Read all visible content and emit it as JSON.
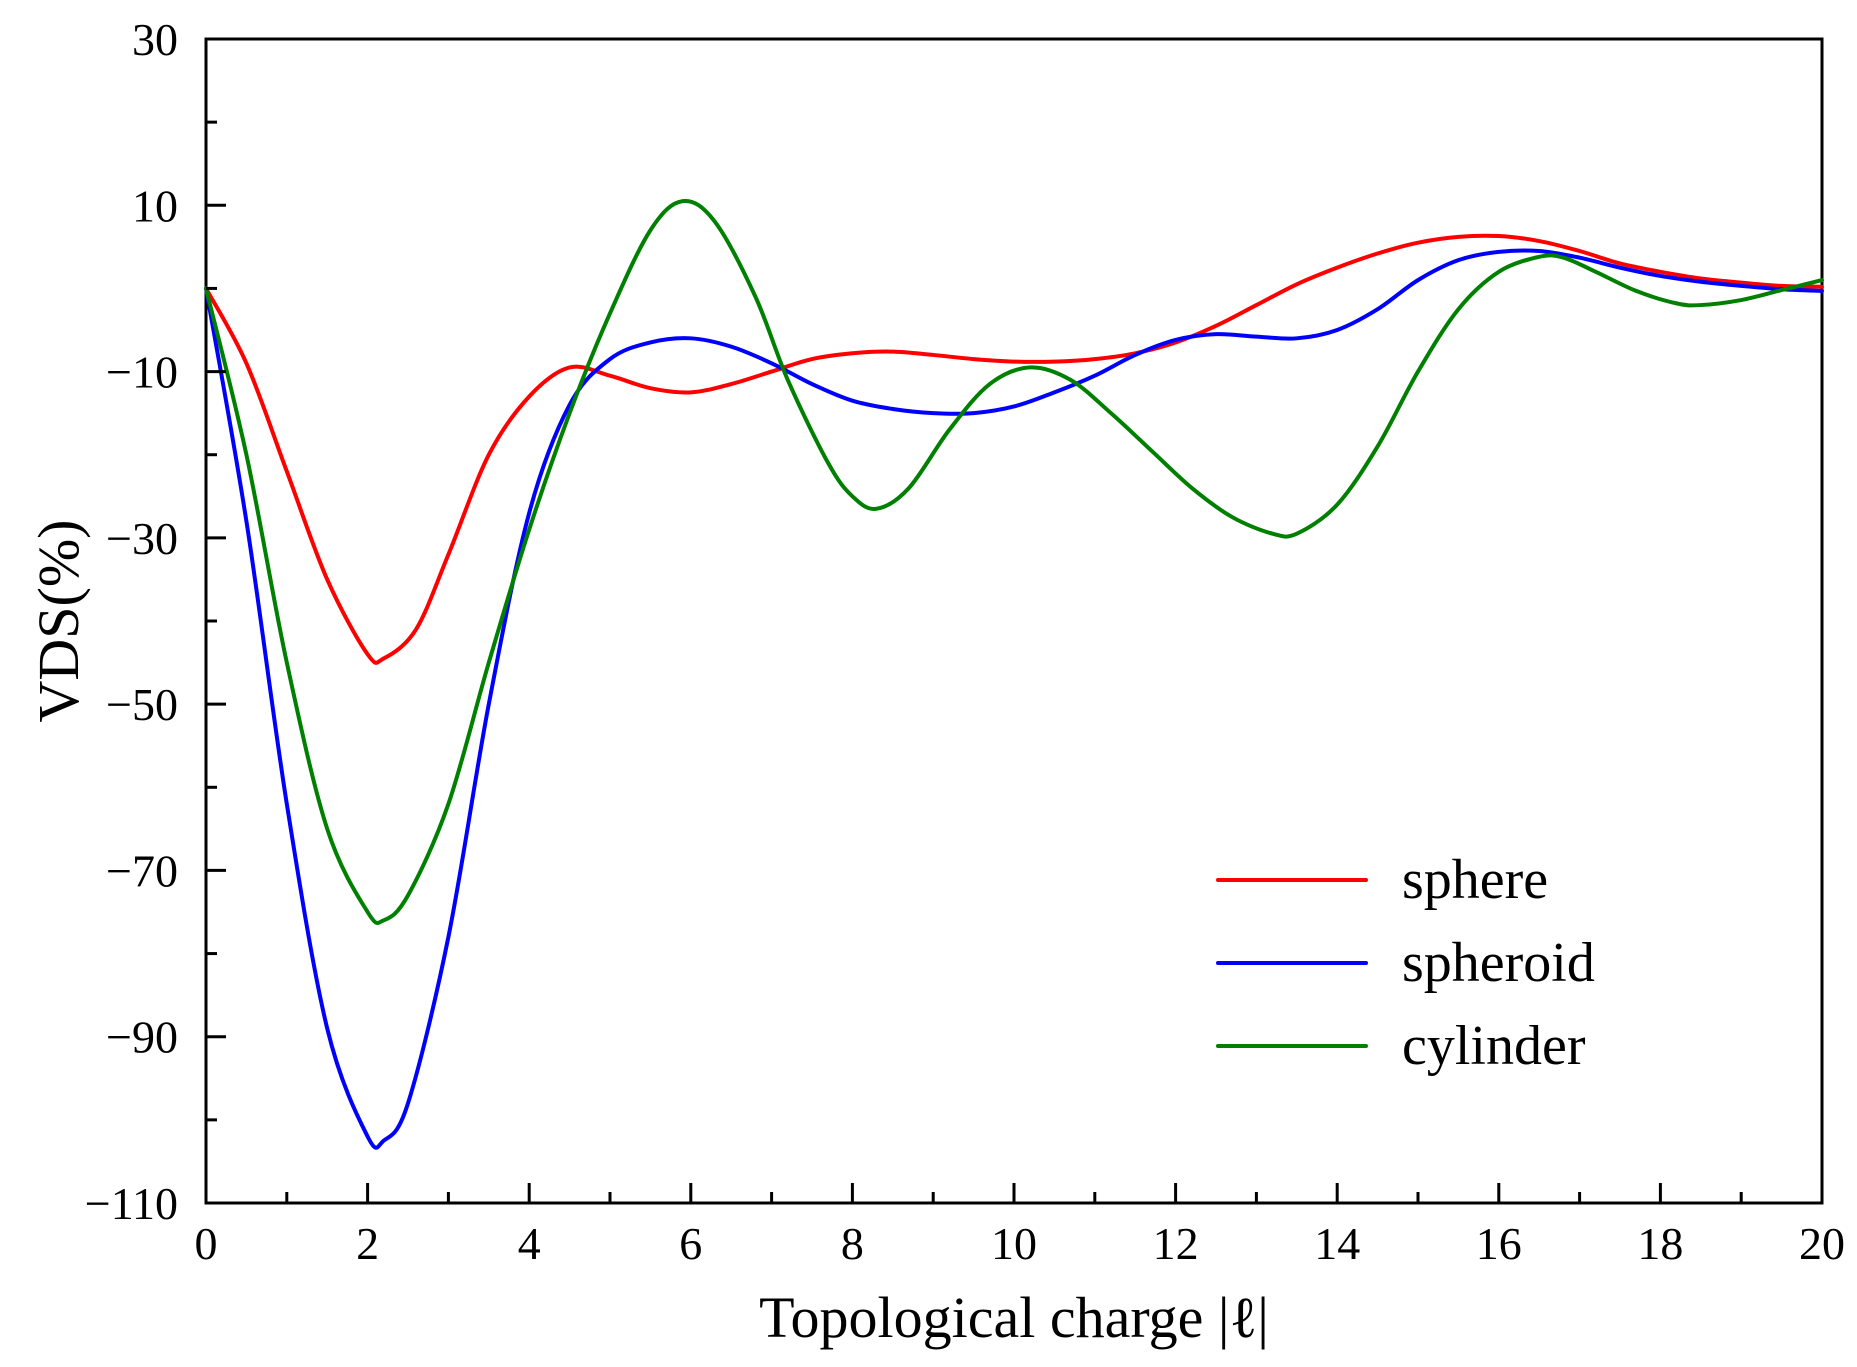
{
  "chart_data": {
    "type": "line",
    "title": "",
    "xlabel": "Topological charge |ℓ|",
    "ylabel": "VDS(%)",
    "xlim": [
      0,
      20
    ],
    "ylim": [
      -110,
      30
    ],
    "xticks": [
      0,
      2,
      4,
      6,
      8,
      10,
      12,
      14,
      16,
      18,
      20
    ],
    "xtick_labels": [
      "0",
      "2",
      "4",
      "6",
      "8",
      "10",
      "12",
      "14",
      "16",
      "18",
      "20"
    ],
    "yticks": [
      30,
      10,
      -10,
      -30,
      -50,
      -70,
      -90,
      -110
    ],
    "ytick_labels": [
      "30",
      "10",
      "−10",
      "−30",
      "−50",
      "−70",
      "−90",
      "−110"
    ],
    "grid": false,
    "legend_position": "lower-right",
    "series": [
      {
        "name": "sphere",
        "color": "#ff0000",
        "points": [
          [
            0,
            0
          ],
          [
            0.5,
            -9
          ],
          [
            1,
            -22
          ],
          [
            1.5,
            -35
          ],
          [
            2,
            -44
          ],
          [
            2.2,
            -44.5
          ],
          [
            2.6,
            -41
          ],
          [
            3,
            -32
          ],
          [
            3.5,
            -20
          ],
          [
            4,
            -13
          ],
          [
            4.5,
            -9.5
          ],
          [
            5,
            -10.5
          ],
          [
            5.5,
            -12
          ],
          [
            6,
            -12.5
          ],
          [
            6.5,
            -11.5
          ],
          [
            7,
            -10
          ],
          [
            7.5,
            -8.5
          ],
          [
            8,
            -7.8
          ],
          [
            8.5,
            -7.6
          ],
          [
            9,
            -8
          ],
          [
            9.5,
            -8.5
          ],
          [
            10,
            -8.8
          ],
          [
            10.5,
            -8.8
          ],
          [
            11,
            -8.5
          ],
          [
            11.5,
            -7.8
          ],
          [
            12,
            -6.5
          ],
          [
            12.5,
            -4.5
          ],
          [
            13,
            -2
          ],
          [
            13.5,
            0.5
          ],
          [
            14,
            2.5
          ],
          [
            14.5,
            4.2
          ],
          [
            15,
            5.5
          ],
          [
            15.5,
            6.2
          ],
          [
            16,
            6.3
          ],
          [
            16.5,
            5.7
          ],
          [
            17,
            4.5
          ],
          [
            17.5,
            3
          ],
          [
            18,
            2
          ],
          [
            18.5,
            1.2
          ],
          [
            19,
            0.7
          ],
          [
            19.5,
            0.3
          ],
          [
            20,
            0.2
          ]
        ]
      },
      {
        "name": "spheroid",
        "color": "#0000ff",
        "points": [
          [
            0,
            0
          ],
          [
            0.5,
            -28
          ],
          [
            1,
            -62
          ],
          [
            1.5,
            -89
          ],
          [
            2,
            -102
          ],
          [
            2.2,
            -102.5
          ],
          [
            2.5,
            -98
          ],
          [
            3,
            -78
          ],
          [
            3.5,
            -50
          ],
          [
            4,
            -27
          ],
          [
            4.5,
            -14
          ],
          [
            5,
            -8.5
          ],
          [
            5.5,
            -6.5
          ],
          [
            6,
            -6
          ],
          [
            6.5,
            -7
          ],
          [
            7,
            -9
          ],
          [
            7.5,
            -11.5
          ],
          [
            8,
            -13.5
          ],
          [
            8.5,
            -14.5
          ],
          [
            9,
            -15
          ],
          [
            9.5,
            -15
          ],
          [
            10,
            -14.2
          ],
          [
            10.5,
            -12.5
          ],
          [
            11,
            -10.5
          ],
          [
            11.5,
            -8
          ],
          [
            12,
            -6.2
          ],
          [
            12.5,
            -5.5
          ],
          [
            13,
            -5.8
          ],
          [
            13.5,
            -6
          ],
          [
            14,
            -5
          ],
          [
            14.5,
            -2.5
          ],
          [
            15,
            1
          ],
          [
            15.5,
            3.4
          ],
          [
            16,
            4.4
          ],
          [
            16.5,
            4.5
          ],
          [
            17,
            3.7
          ],
          [
            17.5,
            2.5
          ],
          [
            18,
            1.5
          ],
          [
            18.5,
            0.8
          ],
          [
            19,
            0.3
          ],
          [
            19.5,
            -0.1
          ],
          [
            20,
            -0.3
          ]
        ]
      },
      {
        "name": "cylinder",
        "color": "#008000",
        "points": [
          [
            0,
            0
          ],
          [
            0.5,
            -20
          ],
          [
            1,
            -45
          ],
          [
            1.5,
            -65
          ],
          [
            2,
            -75
          ],
          [
            2.2,
            -76
          ],
          [
            2.5,
            -73
          ],
          [
            3,
            -62
          ],
          [
            3.5,
            -45
          ],
          [
            4,
            -29
          ],
          [
            4.5,
            -15
          ],
          [
            5,
            -3
          ],
          [
            5.5,
            7
          ],
          [
            5.9,
            10.5
          ],
          [
            6.3,
            8
          ],
          [
            6.8,
            -1
          ],
          [
            7.2,
            -11
          ],
          [
            7.7,
            -21
          ],
          [
            8,
            -25
          ],
          [
            8.3,
            -26.5
          ],
          [
            8.7,
            -24
          ],
          [
            9.2,
            -17
          ],
          [
            9.7,
            -11.5
          ],
          [
            10.2,
            -9.5
          ],
          [
            10.7,
            -11
          ],
          [
            11.2,
            -15
          ],
          [
            11.7,
            -19.5
          ],
          [
            12.2,
            -24
          ],
          [
            12.7,
            -27.5
          ],
          [
            13.2,
            -29.5
          ],
          [
            13.5,
            -29.5
          ],
          [
            14,
            -26
          ],
          [
            14.5,
            -19
          ],
          [
            15,
            -10
          ],
          [
            15.5,
            -2.5
          ],
          [
            16,
            2
          ],
          [
            16.5,
            3.8
          ],
          [
            16.8,
            3.7
          ],
          [
            17.2,
            2
          ],
          [
            17.7,
            -0.3
          ],
          [
            18.2,
            -1.8
          ],
          [
            18.5,
            -2
          ],
          [
            19,
            -1.4
          ],
          [
            19.5,
            -0.2
          ],
          [
            20,
            1
          ]
        ]
      }
    ]
  }
}
